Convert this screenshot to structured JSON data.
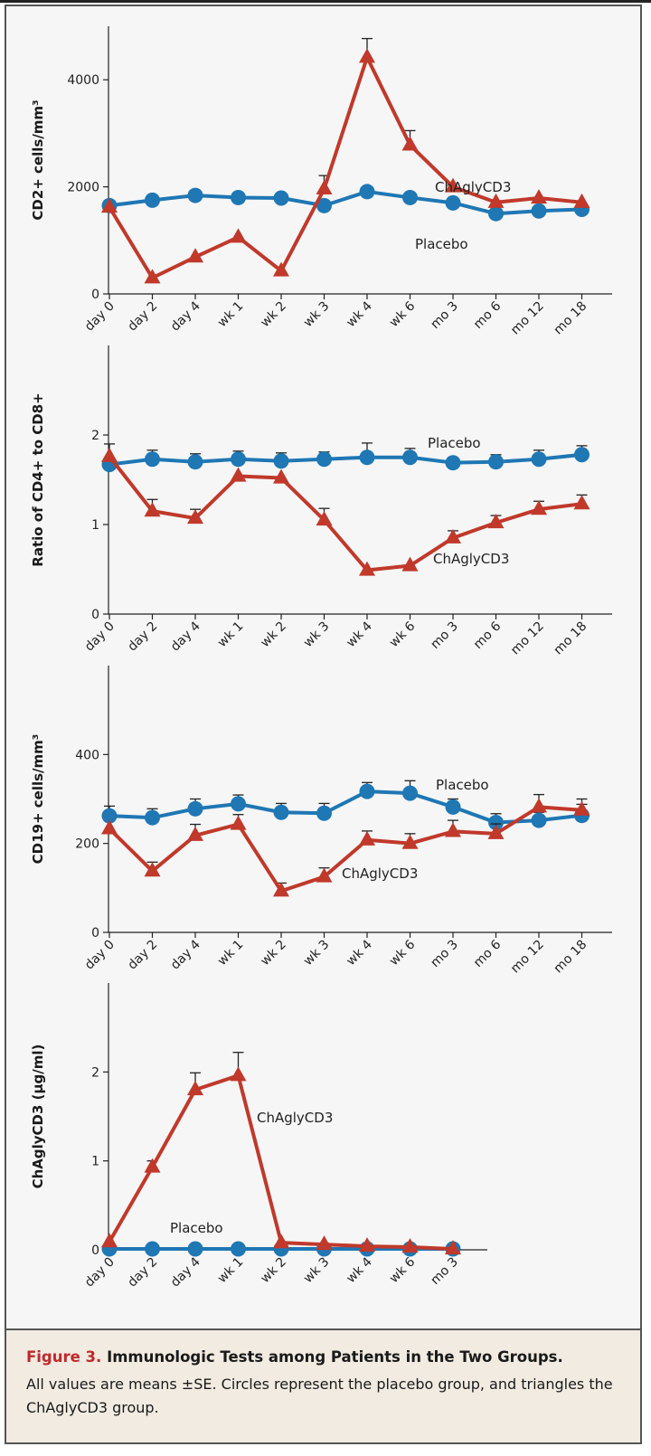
{
  "chart_data": [
    {
      "type": "line",
      "ylabel": "CD2+ cells/mm³",
      "categories": [
        "day 0",
        "day 2",
        "day 4",
        "wk 1",
        "wk 2",
        "wk 3",
        "wk 4",
        "wk 6",
        "mo 3",
        "mo 6",
        "mo 12",
        "mo 18"
      ],
      "ylim": [
        0,
        5000
      ],
      "yticks": [
        0,
        2000,
        4000
      ],
      "series": [
        {
          "name": "Placebo",
          "marker": "circle",
          "color": "#1f77b4",
          "values": [
            1650,
            1750,
            1840,
            1800,
            1790,
            1650,
            1910,
            1800,
            1700,
            1500,
            1550,
            1580
          ],
          "errors": [
            0,
            0,
            0,
            0,
            0,
            0,
            0,
            0,
            0,
            0,
            0,
            0
          ]
        },
        {
          "name": "ChAglyCD3",
          "marker": "triangle",
          "color": "#c0392b",
          "values": [
            1620,
            300,
            690,
            1060,
            430,
            1960,
            4420,
            2780,
            2000,
            1710,
            1790,
            1710
          ],
          "errors": [
            0,
            0,
            0,
            0,
            0,
            250,
            350,
            270,
            0,
            0,
            0,
            0
          ]
        }
      ],
      "annotations": [
        {
          "text": "ChAglyCD3",
          "near": "mo 3"
        },
        {
          "text": "Placebo",
          "near": "mo 3"
        }
      ]
    },
    {
      "type": "line",
      "ylabel": "Ratio of CD4+ to CD8+",
      "categories": [
        "day 0",
        "day 2",
        "day 4",
        "wk 1",
        "wk 2",
        "wk 3",
        "wk 4",
        "wk 6",
        "mo 3",
        "mo 6",
        "mo 12",
        "mo 18"
      ],
      "ylim": [
        0,
        3
      ],
      "yticks": [
        0,
        1,
        2
      ],
      "series": [
        {
          "name": "Placebo",
          "marker": "circle",
          "color": "#1f77b4",
          "values": [
            1.67,
            1.73,
            1.7,
            1.73,
            1.71,
            1.73,
            1.75,
            1.75,
            1.69,
            1.7,
            1.73,
            1.78
          ],
          "errors": [
            0,
            0.1,
            0.09,
            0.09,
            0.09,
            0.08,
            0.16,
            0.1,
            0,
            0.08,
            0.1,
            0.1
          ]
        },
        {
          "name": "ChAglyCD3",
          "marker": "triangle",
          "color": "#c0392b",
          "values": [
            1.76,
            1.15,
            1.07,
            1.54,
            1.52,
            1.05,
            0.49,
            0.54,
            0.85,
            1.02,
            1.17,
            1.23
          ],
          "errors": [
            0.14,
            0.13,
            0.1,
            0,
            0,
            0.13,
            0,
            0,
            0.08,
            0.08,
            0.09,
            0.1
          ]
        }
      ],
      "annotations": [
        {
          "text": "Placebo",
          "near": "mo 3"
        },
        {
          "text": "ChAglyCD3",
          "near": "mo 3"
        }
      ]
    },
    {
      "type": "line",
      "ylabel": "CD19+ cells/mm³",
      "categories": [
        "day 0",
        "day 2",
        "day 4",
        "wk 1",
        "wk 2",
        "wk 3",
        "wk 4",
        "wk 6",
        "mo 3",
        "mo 6",
        "mo 12",
        "mo 18"
      ],
      "ylim": [
        0,
        600
      ],
      "yticks": [
        0,
        200,
        400
      ],
      "series": [
        {
          "name": "Placebo",
          "marker": "circle",
          "color": "#1f77b4",
          "values": [
            262,
            258,
            278,
            289,
            270,
            268,
            317,
            313,
            282,
            247,
            252,
            263
          ],
          "errors": [
            22,
            20,
            22,
            20,
            20,
            22,
            20,
            28,
            18,
            20,
            18,
            25
          ]
        },
        {
          "name": "ChAglyCD3",
          "marker": "triangle",
          "color": "#c0392b",
          "values": [
            233,
            138,
            218,
            243,
            93,
            125,
            208,
            200,
            227,
            222,
            282,
            275
          ],
          "errors": [
            0,
            20,
            25,
            22,
            18,
            20,
            20,
            22,
            25,
            22,
            28,
            25
          ]
        }
      ],
      "annotations": [
        {
          "text": "Placebo",
          "near": "mo 3"
        },
        {
          "text": "ChAglyCD3",
          "near": "wk 3"
        }
      ]
    },
    {
      "type": "line",
      "ylabel": "ChAglyCD3 (μg/ml)",
      "categories": [
        "day 0",
        "day 2",
        "day 4",
        "wk 1",
        "wk 2",
        "wk 3",
        "wk 4",
        "wk 6",
        "mo 3"
      ],
      "ylim": [
        0,
        3
      ],
      "yticks": [
        0,
        1,
        2
      ],
      "series": [
        {
          "name": "Placebo",
          "marker": "circle",
          "color": "#1f77b4",
          "values": [
            0.01,
            0.01,
            0.01,
            0.01,
            0.01,
            0.01,
            0.01,
            0.01,
            0.01
          ],
          "errors": [
            0,
            0,
            0,
            0,
            0,
            0,
            0,
            0,
            0
          ]
        },
        {
          "name": "ChAglyCD3",
          "marker": "triangle",
          "color": "#c0392b",
          "values": [
            0.09,
            0.93,
            1.8,
            1.96,
            0.08,
            0.06,
            0.04,
            0.03,
            0.01
          ],
          "errors": [
            0,
            0.07,
            0.19,
            0.26,
            0,
            0,
            0,
            0,
            0
          ]
        }
      ],
      "annotations": [
        {
          "text": "ChAglyCD3",
          "near": "wk 2"
        },
        {
          "text": "Placebo",
          "near": "day 4"
        }
      ]
    }
  ],
  "caption": {
    "label": "Figure 3.",
    "title": "Immunologic Tests among Patients in the Two Groups.",
    "body": "All values are means ±SE. Circles represent the placebo group, and triangles the ChAglyCD3 group."
  }
}
